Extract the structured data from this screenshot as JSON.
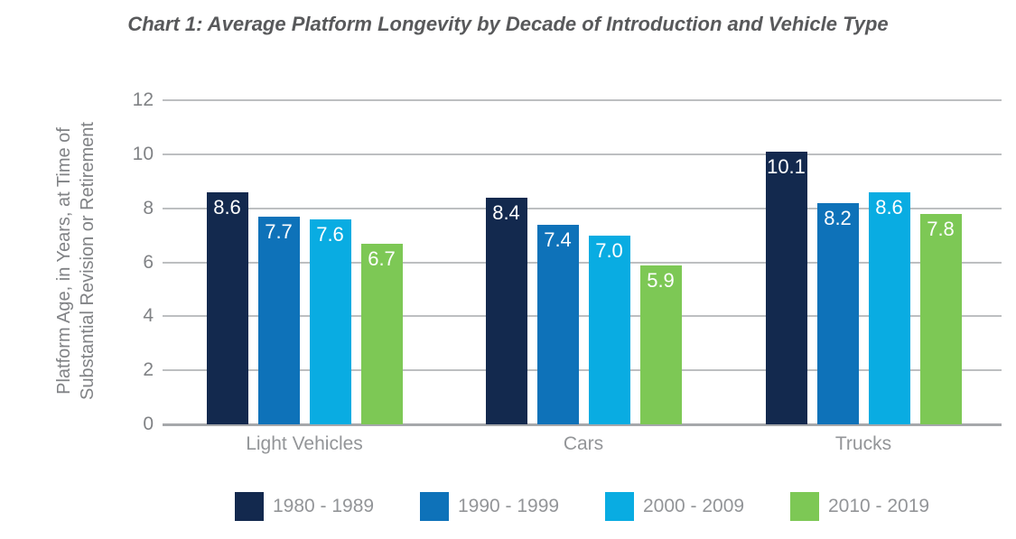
{
  "title": "Chart 1: Average Platform Longevity by Decade of Introduction and Vehicle Type",
  "chart_data": {
    "type": "bar",
    "title": "Chart 1: Average Platform Longevity by Decade of Introduction and Vehicle Type",
    "categories": [
      "Light Vehicles",
      "Cars",
      "Trucks"
    ],
    "series": [
      {
        "name": "1980 - 1989",
        "color": "#13294e",
        "values": [
          8.6,
          8.4,
          10.1
        ]
      },
      {
        "name": "1990 - 1999",
        "color": "#0e72b9",
        "values": [
          7.7,
          7.4,
          8.2
        ]
      },
      {
        "name": "2000 - 2009",
        "color": "#09ace2",
        "values": [
          7.6,
          7.0,
          8.6
        ]
      },
      {
        "name": "2010 - 2019",
        "color": "#7dc855",
        "values": [
          6.7,
          5.9,
          7.8
        ]
      }
    ],
    "ylabel_lines": [
      "Platform Age, in Years, at Time of",
      "Substantial Revision or Retirement"
    ],
    "yticks": [
      0,
      2,
      4,
      6,
      8,
      10,
      12
    ],
    "ylim": [
      0,
      12
    ],
    "grid": true,
    "legend_position": "bottom",
    "value_label_color": "#ffffff",
    "colors": {
      "title_text": "#58595b",
      "axis_text": "#808285",
      "category_text": "#939598",
      "gridline": "#bdbfc1",
      "baseline": "#a6a8ab"
    }
  }
}
